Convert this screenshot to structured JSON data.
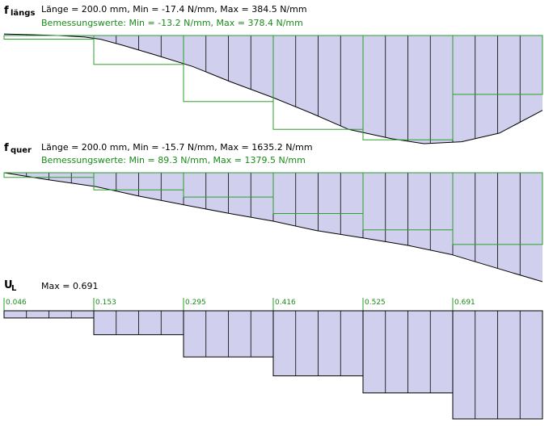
{
  "colors": {
    "fill": "#d0d0ee",
    "stroke": "#000000",
    "design": "#2aa02a",
    "text": "#000000",
    "design_text": "#1a8a1a"
  },
  "panels": [
    {
      "id": "f-laengs",
      "symbol": "f",
      "subscript": "längs",
      "info": "Länge = 200.0 mm,  Min = -17.4 N/mm,  Max = 384.5 N/mm",
      "design_info": "Bemessungswerte: Min = -13.2 N/mm,  Max = 378.4 N/mm",
      "min": -17.4,
      "max": 384.5,
      "design_values": [
        -13.2,
        104.9,
        239.5,
        340.3,
        378.4,
        213.5
      ],
      "curve": [
        [
          0,
          5.4
        ],
        [
          5,
          2.7
        ],
        [
          10,
          0.0
        ],
        [
          15,
          -5.4
        ],
        [
          18,
          -13.5
        ],
        [
          22,
          -33.6
        ],
        [
          28,
          -67.3
        ],
        [
          35,
          -107.6
        ],
        [
          42,
          -160.4
        ],
        [
          50,
          -216.4
        ],
        [
          57,
          -270.0
        ],
        [
          64,
          -326.9
        ],
        [
          72,
          -359.6
        ],
        [
          78,
          -376.7
        ],
        [
          85,
          -369.9
        ],
        [
          92,
          -339.8
        ],
        [
          100,
          -260.5
        ]
      ]
    },
    {
      "id": "f-quer",
      "symbol": "f",
      "subscript": "quer",
      "info": "Länge = 200.0 mm,  Min = -15.7 N/mm,  Max = 1635.2 N/mm",
      "design_info": "Bemessungswerte: Min = 89.3 N/mm,  Max = 1379.5 N/mm",
      "min": -15.7,
      "max": 1635.2,
      "design_values": [
        89.3,
        329.6,
        467.7,
        784.6,
        1098.7,
        1379.5
      ],
      "curve": [
        [
          0,
          0.0
        ],
        [
          8,
          -126
        ],
        [
          17,
          -254
        ],
        [
          25,
          -430
        ],
        [
          33,
          -584
        ],
        [
          42,
          -752
        ],
        [
          50,
          -893
        ],
        [
          58,
          -1065
        ],
        [
          67,
          -1206
        ],
        [
          75,
          -1338
        ],
        [
          83,
          -1505
        ],
        [
          92,
          -1773
        ],
        [
          100,
          -2008
        ]
      ]
    },
    {
      "id": "u-l",
      "symbol": "U",
      "subscript": "L",
      "info": "Max = 0.691",
      "max": 0.691,
      "segment_labels": [
        "0.046",
        "0.153",
        "0.295",
        "0.416",
        "0.525",
        "0.691"
      ],
      "segment_values": [
        0.046,
        0.153,
        0.295,
        0.416,
        0.525,
        0.691
      ]
    }
  ]
}
